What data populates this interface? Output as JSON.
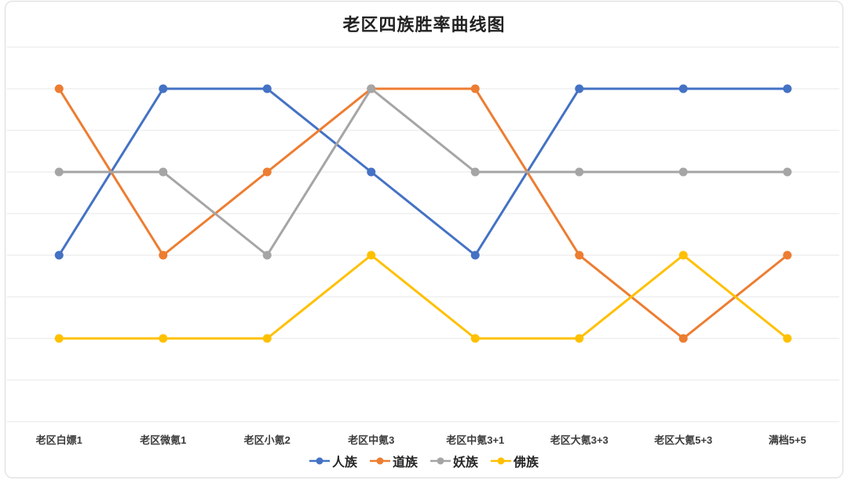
{
  "window": {
    "background": "#ffffff",
    "frame_border_color": "#dadada"
  },
  "chart_data": {
    "type": "line",
    "title": "老区四族胜率曲线图",
    "categories": [
      "老区白嫖1",
      "老区微氪1",
      "老区小氪2",
      "老区中氪3",
      "老区中氪3+1",
      "老区大氪3+3",
      "老区大氪5+3",
      "满档5+5"
    ],
    "series": [
      {
        "name": "人族",
        "color": "#4472C4",
        "values": [
          2,
          4,
          4,
          3,
          2,
          4,
          4,
          4
        ]
      },
      {
        "name": "道族",
        "color": "#ED7D31",
        "values": [
          4,
          2,
          3,
          4,
          4,
          2,
          1,
          2
        ]
      },
      {
        "name": "妖族",
        "color": "#A5A5A5",
        "values": [
          3,
          3,
          2,
          4,
          3,
          3,
          3,
          3
        ]
      },
      {
        "name": "佛族",
        "color": "#FFC000",
        "values": [
          1,
          1,
          1,
          2,
          1,
          1,
          2,
          1
        ]
      }
    ],
    "xlabel": "",
    "ylabel": "",
    "ylim": [
      0,
      4.5
    ],
    "gridline_step": 0.5,
    "grid": "horizontal",
    "gridline_color": "#e7e7e7",
    "y_tick_labels_visible": false,
    "legend_position": "bottom-center",
    "marker": "circle",
    "line_width": 3,
    "marker_radius": 5.5,
    "text_color": "#262626"
  }
}
